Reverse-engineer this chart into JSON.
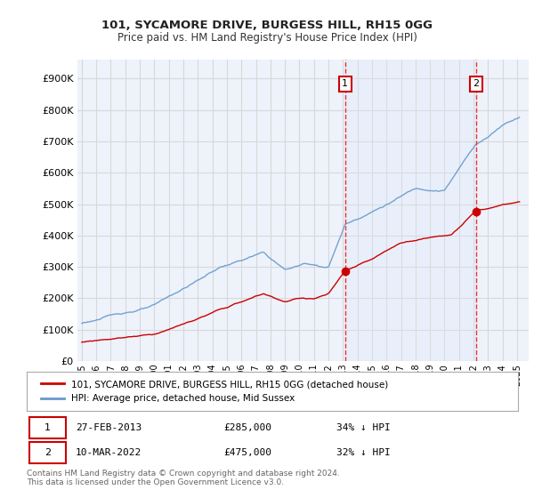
{
  "title": "101, SYCAMORE DRIVE, BURGESS HILL, RH15 0GG",
  "subtitle": "Price paid vs. HM Land Registry's House Price Index (HPI)",
  "ylabel_ticks": [
    "£0",
    "£100K",
    "£200K",
    "£300K",
    "£400K",
    "£500K",
    "£600K",
    "£700K",
    "£800K",
    "£900K"
  ],
  "ytick_values": [
    0,
    100000,
    200000,
    300000,
    400000,
    500000,
    600000,
    700000,
    800000,
    900000
  ],
  "ylim": [
    0,
    960000
  ],
  "xlim_start": 1994.7,
  "xlim_end": 2025.8,
  "red_line_color": "#cc0000",
  "blue_line_color": "#6699cc",
  "blue_fill_color": "#dce8f8",
  "vline_color": "#ee3333",
  "sale1_x": 2013.15,
  "sale1_y": 285000,
  "sale2_x": 2022.19,
  "sale2_y": 475000,
  "legend_label_red": "101, SYCAMORE DRIVE, BURGESS HILL, RH15 0GG (detached house)",
  "legend_label_blue": "HPI: Average price, detached house, Mid Sussex",
  "footer": "Contains HM Land Registry data © Crown copyright and database right 2024.\nThis data is licensed under the Open Government Licence v3.0.",
  "bg_color": "#ffffff",
  "plot_bg_color": "#eef2fb",
  "grid_color": "#d8d8d8",
  "label_box_color": "#cc0000"
}
